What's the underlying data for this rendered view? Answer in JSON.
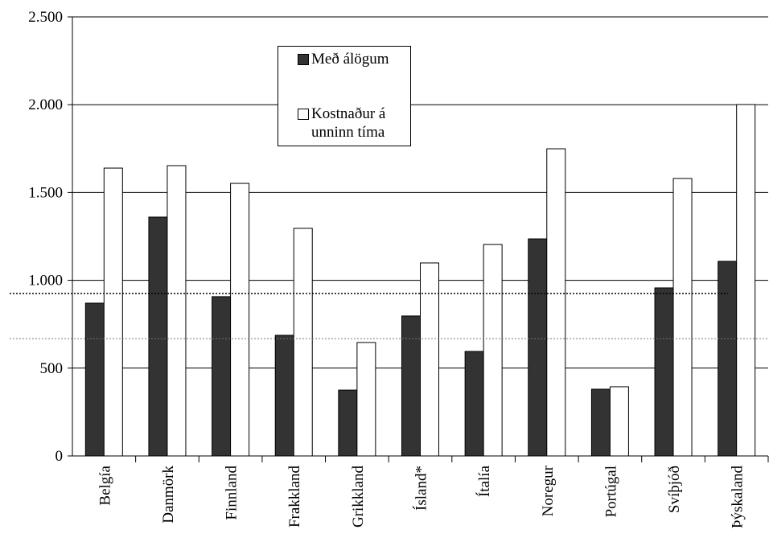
{
  "chart_data": {
    "type": "bar",
    "categories": [
      "Belgía",
      "Danmörk",
      "Finnland",
      "Frakkland",
      "Grikkland",
      "Ísland*",
      "Ítalía",
      "Noregur",
      "Portúgal",
      "Svíþjóð",
      "Þýskaland"
    ],
    "series": [
      {
        "name": "Með álögum",
        "color": "#333333",
        "values": [
          870,
          1360,
          907,
          687,
          375,
          797,
          595,
          1236,
          380,
          957,
          1108
        ]
      },
      {
        "name": "Kostnaður á unninn tíma",
        "color": "#ffffff",
        "values": [
          1639,
          1653,
          1552,
          1296,
          646,
          1099,
          1204,
          1749,
          394,
          1580,
          2001
        ]
      }
    ],
    "reference_lines": [
      925,
      668
    ],
    "ylim": [
      0,
      2500
    ],
    "yticks": [
      0,
      500,
      {
        "value": 1000,
        "label": "1.000"
      },
      {
        "value": 1500,
        "label": "1.500"
      },
      {
        "value": 2000,
        "label": "2.000"
      },
      {
        "value": 2500,
        "label": "2.500"
      }
    ],
    "grid": true
  }
}
